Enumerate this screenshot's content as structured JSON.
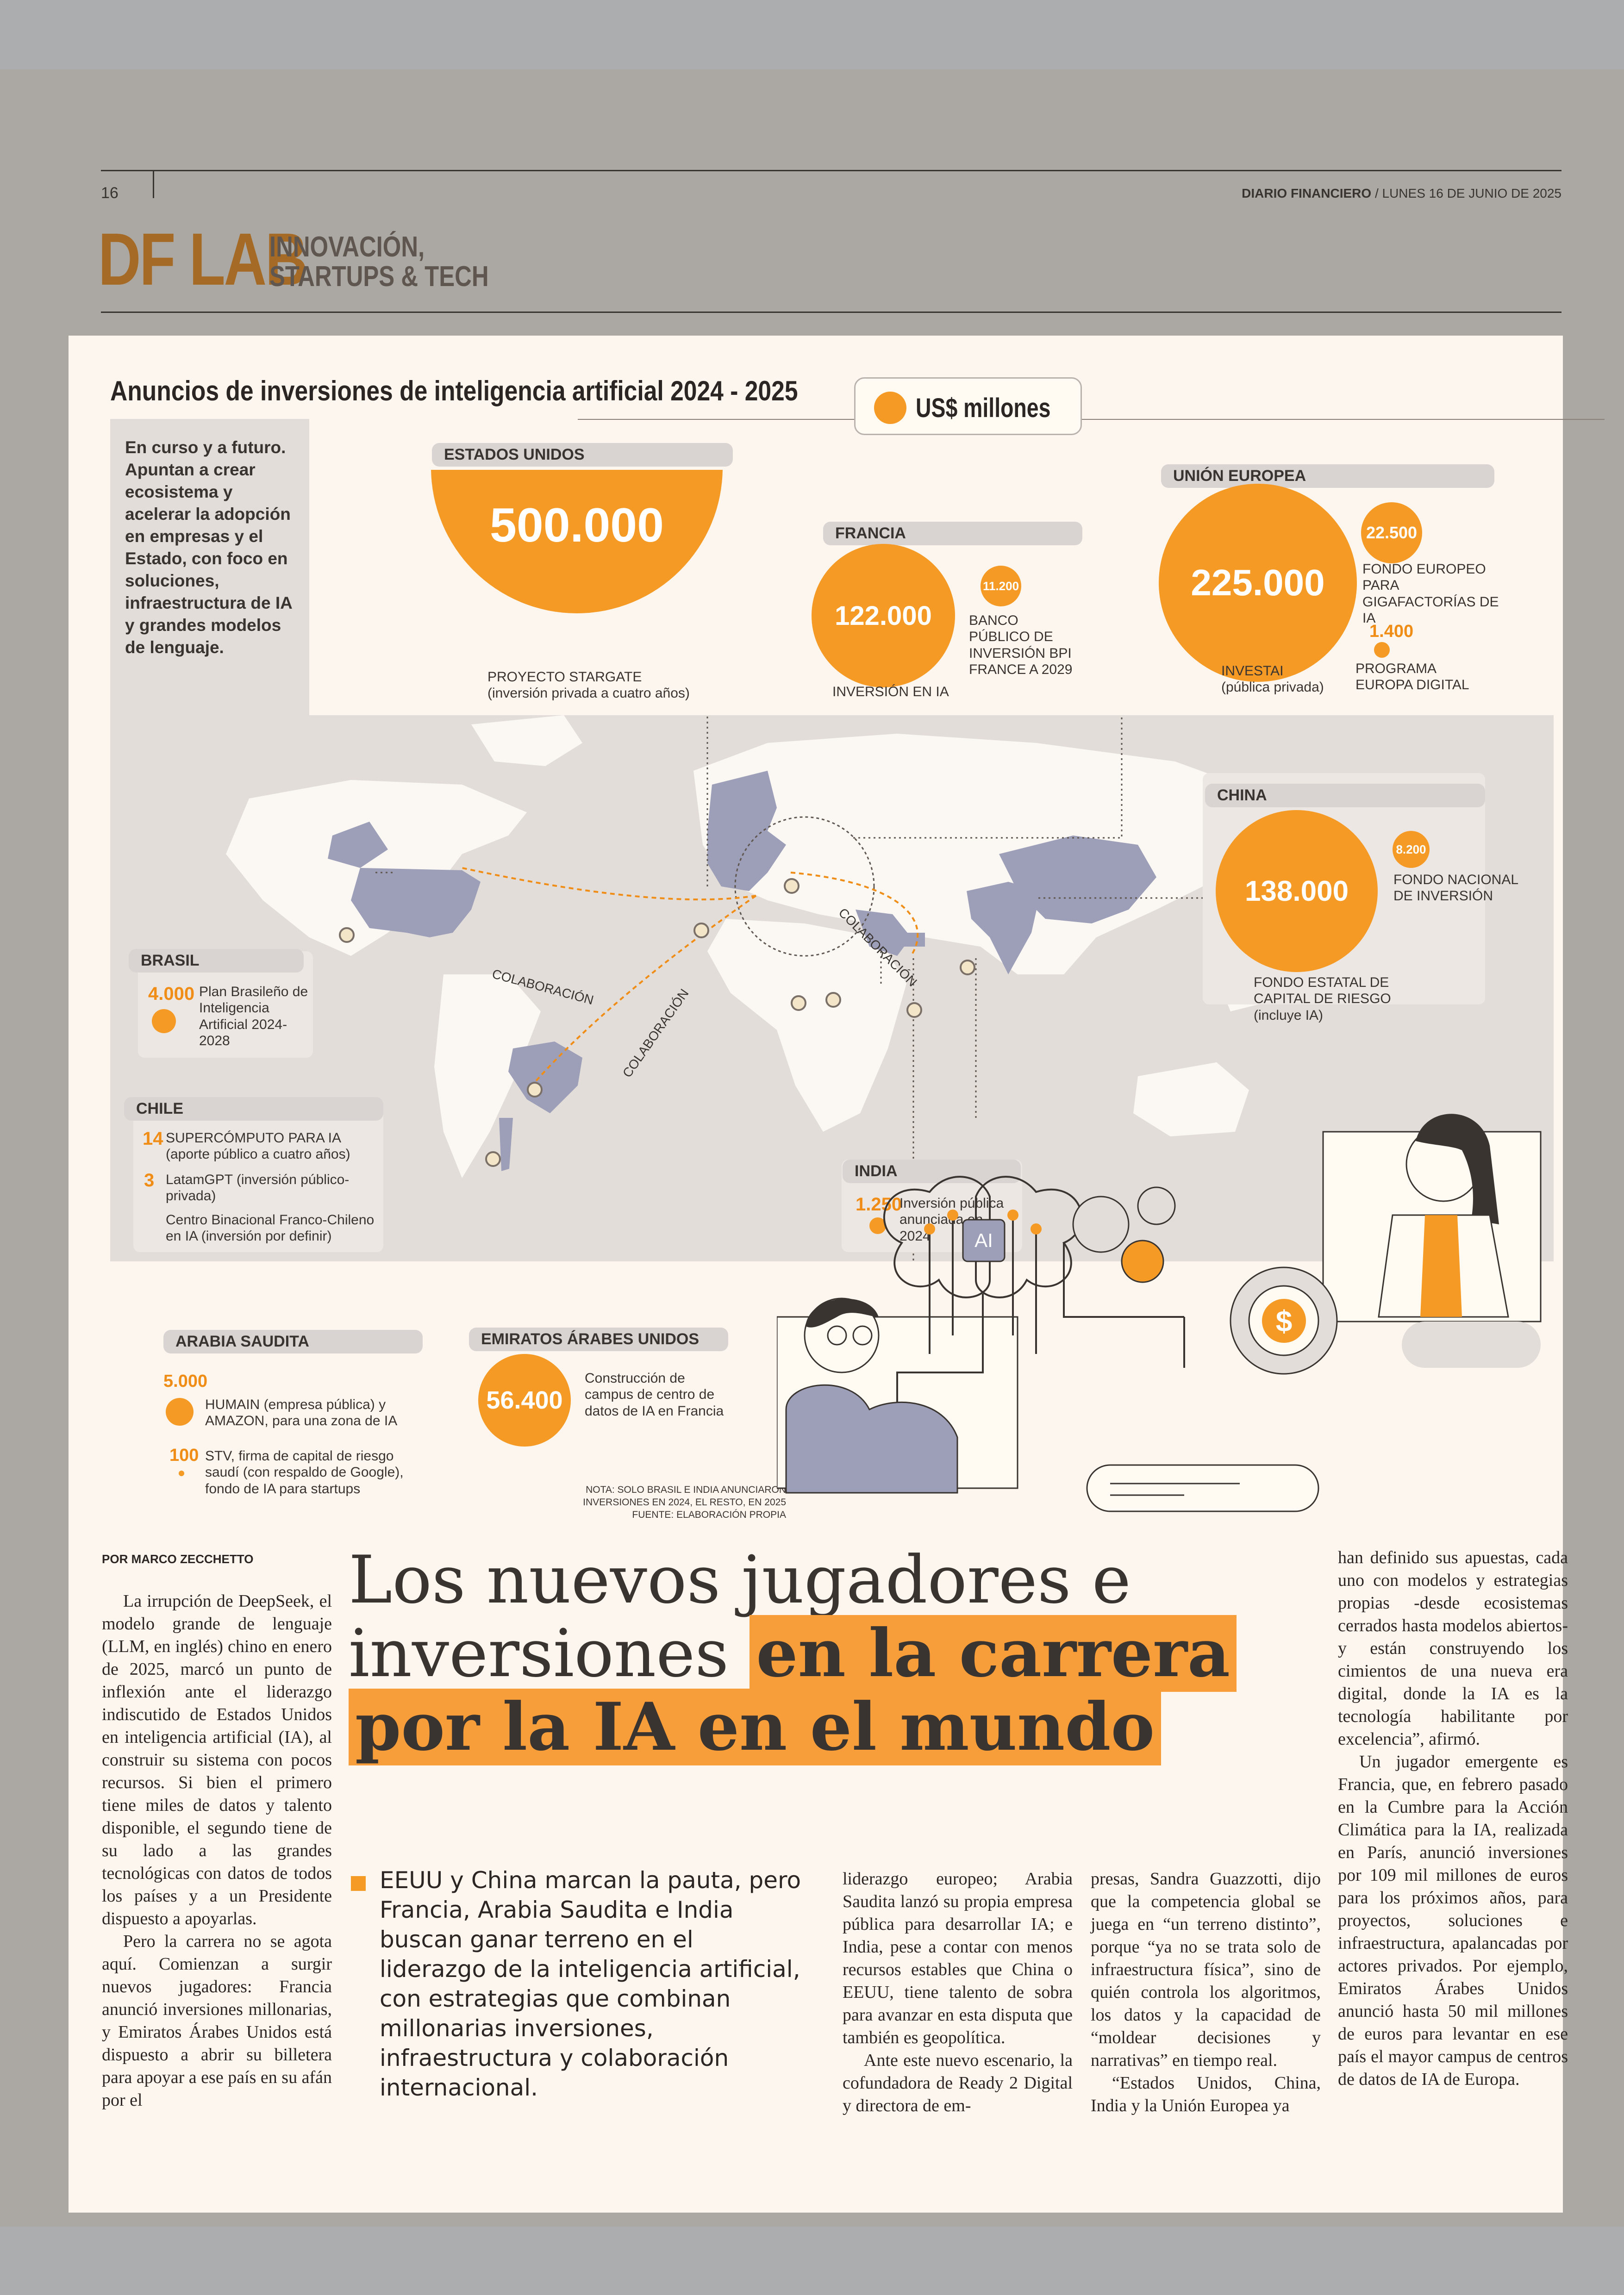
{
  "header": {
    "page_number": "16",
    "paper_name": "DIARIO FINANCIERO",
    "date": "/ LUNES 16 DE JUNIO DE 2025",
    "section_logo": "DF LAB",
    "section_line1": "INNOVACIÓN,",
    "section_line2": "STARTUPS & TECH"
  },
  "infographic": {
    "title": "Anuncios de inversiones de inteligencia artificial 2024 - 2025",
    "unit_label": "US$ millones",
    "intro": "En curso y a futuro. Apuntan a crear ecosistema y acelerar la adopción en empresas y el Estado, con foco en soluciones, infraestructura de IA y grandes modelos de lenguaje.",
    "usa": {
      "name": "ESTADOS UNIDOS",
      "value": "500.000",
      "desc_line1": "PROYECTO STARGATE",
      "desc_line2": "(inversión privada a cuatro años)"
    },
    "france": {
      "name": "FRANCIA",
      "value": "122.000",
      "desc": "INVERSIÓN EN IA",
      "sub_value": "11.200",
      "sub_desc": "BANCO PÚBLICO DE INVERSIÓN BPI FRANCE A 2029"
    },
    "eu": {
      "name": "UNIÓN EUROPEA",
      "value": "225.000",
      "desc_line1": "INVESTAI",
      "desc_line2": "(pública privada)",
      "sub1_value": "22.500",
      "sub1_desc": "FONDO EUROPEO PARA GIGAFACTORÍAS DE IA",
      "sub2_value": "1.400",
      "sub2_desc": "PROGRAMA EUROPA DIGITAL"
    },
    "china": {
      "name": "CHINA",
      "value": "138.000",
      "desc": "FONDO ESTATAL DE CAPITAL DE RIESGO (incluye IA)",
      "sub_value": "8.200",
      "sub_desc": "FONDO NACIONAL DE INVERSIÓN"
    },
    "brasil": {
      "name": "BRASIL",
      "value": "4.000",
      "desc": "Plan Brasileño de Inteligencia Artificial 2024-2028"
    },
    "chile": {
      "name": "CHILE",
      "v1": "14",
      "d1": "SUPERCÓMPUTO PARA IA (aporte público a cuatro años)",
      "v2": "3",
      "d2": "LatamGPT (inversión público-privada)",
      "d3": "Centro Binacional Franco-Chileno en IA (inversión por definir)"
    },
    "india": {
      "name": "INDIA",
      "value": "1.250",
      "desc": "Inversión pública anunciada en 2024"
    },
    "saudi": {
      "name": "ARABIA SAUDITA",
      "v1": "5.000",
      "d1": "HUMAIN (empresa pública) y AMAZON, para una zona de IA",
      "v2": "100",
      "d2": "STV, firma de capital de riesgo saudí (con respaldo de Google), fondo de IA para startups"
    },
    "uae": {
      "name": "EMIRATOS ÁRABES UNIDOS",
      "value": "56.400",
      "desc": "Construcción de campus de centro de datos de IA en Francia"
    },
    "collab1": "COLABORACIÓN",
    "collab2": "COLABORACIÓN",
    "collab3": "COLABORACIÓN",
    "ai_chip": "AI",
    "dollar": "$",
    "note_line1": "NOTA: SOLO BRASIL E INDIA ANUNCIARON",
    "note_line2": "INVERSIONES EN 2024, EL RESTO, EN 2025",
    "note_line3": "FUENTE: ELABORACIÓN PROPIA"
  },
  "article": {
    "byline": "POR MARCO ZECCHETTO",
    "headline_plain": "Los nuevos jugadores e inversiones",
    "headline_hl1": "en la carrera",
    "headline_hl2": "por la IA en el mundo",
    "lead": "EEUU y China marcan la pauta, pero Francia, Arabia Saudita e India buscan ganar terreno en el liderazgo de la inteligencia artificial, con estrategias que combinan millonarias inversiones, infraestructura y colaboración internacional.",
    "col1_p1": "La irrupción de DeepSeek, el modelo grande de lenguaje (LLM, en inglés) chino en enero de 2025, marcó un punto de inflexión ante el liderazgo indiscutido de Estados Unidos en inteligencia artificial (IA), al construir su sistema con pocos recursos. Si bien el primero tiene miles de datos y talento disponible, el segundo tiene de su lado a las grandes tecnológicas con datos de todos los países y a un Presidente dispuesto a apoyarlas.",
    "col1_p2": "Pero la carrera no se agota aquí. Comienzan a surgir nuevos jugadores: Francia anunció inversiones millonarias, y Emiratos Árabes Unidos está dispuesto a abrir su billetera para apoyar a ese país en su afán por el",
    "col3_p1": "liderazgo europeo; Arabia Saudita lanzó su propia empresa pública para desarrollar IA; e India, pese a contar con menos recursos estables que China o EEUU, tiene talento de sobra para avanzar en esta disputa que también es geopolítica.",
    "col3_p2": "Ante este nuevo escenario, la cofundadora de Ready 2 Digital y directora de em-",
    "col4_p1": "presas, Sandra Guazzotti, dijo que la competencia global se juega en “un terreno distinto”, porque “ya no se trata solo de infraestructura física”, sino de quién controla los algoritmos, los datos y la capacidad de “moldear decisiones y narrativas” en tiempo real.",
    "col4_p2": "“Estados Unidos, China, India y la Unión Europea ya",
    "col5_p1": "han definido sus apuestas, cada uno con modelos y estrategias propias -desde ecosistemas cerrados hasta modelos abiertos- y están construyendo los cimientos de una nueva era digital, donde la IA es la tecnología habilitante por excelencia”, afirmó.",
    "col5_p2": "Un jugador emergente es Francia, que, en febrero pasado en la Cumbre para la Acción Climática para la IA, realizada en París, anunció inversiones por 109 mil millones de euros para los próximos años, para proyectos, soluciones e infraestructura, apalancadas por actores privados. Por ejemplo, Emiratos Árabes Unidos anunció hasta 50 mil millones de euros para levantar en ese país el mayor campus de centros de datos de IA de Europa."
  }
}
